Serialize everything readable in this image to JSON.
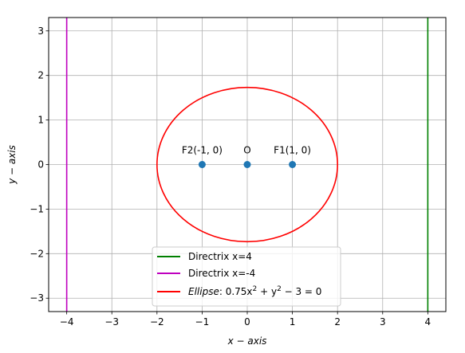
{
  "chart_data": {
    "type": "line",
    "title": "",
    "xlabel": "x − axis",
    "ylabel": "y − axis",
    "xlim": [
      -4.4,
      4.4
    ],
    "ylim": [
      -3.3,
      3.3
    ],
    "xticks": [
      -4,
      -3,
      -2,
      -1,
      0,
      1,
      2,
      3,
      4
    ],
    "yticks": [
      -3,
      -2,
      -1,
      0,
      1,
      2,
      3
    ],
    "xtick_labels": [
      "−4",
      "−3",
      "−2",
      "−1",
      "0",
      "1",
      "2",
      "3",
      "4"
    ],
    "ytick_labels": [
      "−3",
      "−2",
      "−1",
      "0",
      "1",
      "2",
      "3"
    ],
    "grid": true,
    "legend_position": "bottom-center",
    "series": [
      {
        "name": "Directrix x=4",
        "type": "vline",
        "x": 4,
        "color": "#008000"
      },
      {
        "name": "Directrix x=-4",
        "type": "vline",
        "x": -4,
        "color": "#bf00bf"
      },
      {
        "name": "Ellipse: 0.75x² + y² − 3 = 0",
        "type": "ellipse",
        "a": 2,
        "b": 1.732,
        "center": [
          0,
          0
        ],
        "color": "#ff0000"
      }
    ],
    "points": [
      {
        "label": "F2(-1, 0)",
        "x": -1,
        "y": 0
      },
      {
        "label": "O",
        "x": 0,
        "y": 0
      },
      {
        "label": "F1(1, 0)",
        "x": 1,
        "y": 0
      }
    ],
    "point_color": "#1f77b4",
    "legend_labels": [
      "Directrix x=4",
      "Directrix x=-4"
    ],
    "legend_ellipse": {
      "italic": "Ellipse",
      "rest": ": 0.75x",
      "sup1": "2",
      "mid": " + y",
      "sup2": "2",
      "tail": " − 3 = 0"
    }
  }
}
